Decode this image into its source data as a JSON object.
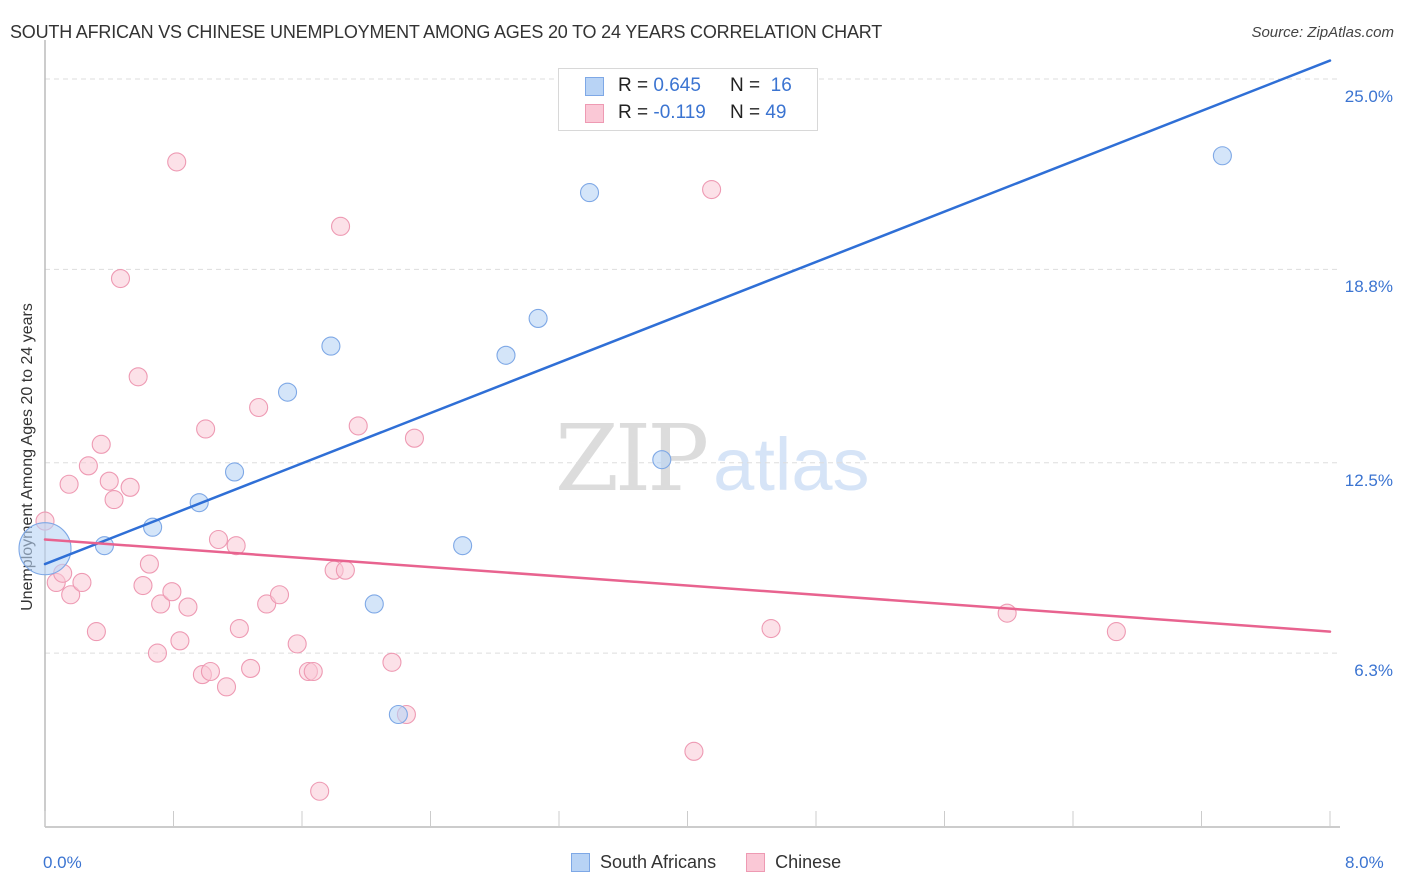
{
  "header": {
    "title": "SOUTH AFRICAN VS CHINESE UNEMPLOYMENT AMONG AGES 20 TO 24 YEARS CORRELATION CHART",
    "source": "Source: ZipAtlas.com"
  },
  "legend": {
    "rows": [
      {
        "r_label": "R =",
        "r_value": "0.645",
        "n_label": "N =",
        "n_value": "16",
        "color": "#b8d3f5",
        "border": "#7ea8e6"
      },
      {
        "r_label": "R =",
        "r_value": "-0.119",
        "n_label": "N =",
        "n_value": "49",
        "color": "#fac8d6",
        "border": "#ee9ab3"
      }
    ]
  },
  "bottom_legend": {
    "items": [
      {
        "label": "South Africans",
        "color": "#b8d3f5",
        "border": "#7ea8e6"
      },
      {
        "label": "Chinese",
        "color": "#fac8d6",
        "border": "#ee9ab3"
      }
    ]
  },
  "watermark": {
    "zip": "ZIP",
    "atlas": "atlas"
  },
  "colors": {
    "blue_line": "#2f6fd6",
    "pink_line": "#e8638f",
    "axis_label": "#3b74d1",
    "grid": "#dddddd"
  },
  "chart_data": {
    "type": "scatter",
    "title": "SOUTH AFRICAN VS CHINESE UNEMPLOYMENT AMONG AGES 20 TO 24 YEARS CORRELATION CHART",
    "xlabel": "",
    "ylabel": "Unemployment Among Ages 20 to 24 years",
    "xlim": [
      0.0,
      8.0
    ],
    "ylim": [
      0.6,
      25.6
    ],
    "x_tick_labels": [
      "0.0%",
      "8.0%"
    ],
    "y_tick_labels": [
      "25.0%",
      "18.8%",
      "12.5%",
      "6.3%"
    ],
    "y_ticks": [
      25.0,
      18.8,
      12.5,
      6.3
    ],
    "grid": true,
    "legend_position": "top-center",
    "series": [
      {
        "name": "South Africans",
        "color": "#b8d3f5",
        "R": 0.645,
        "N": 16,
        "trend": {
          "x0": 0.0,
          "y0": 9.2,
          "x1": 8.0,
          "y1": 25.6
        },
        "points": [
          {
            "x": 0.0,
            "y": 9.7,
            "size": "large"
          },
          {
            "x": 0.37,
            "y": 9.8
          },
          {
            "x": 0.67,
            "y": 10.4
          },
          {
            "x": 0.96,
            "y": 11.2
          },
          {
            "x": 1.18,
            "y": 12.2
          },
          {
            "x": 1.51,
            "y": 14.8
          },
          {
            "x": 1.78,
            "y": 16.3
          },
          {
            "x": 2.05,
            "y": 7.9
          },
          {
            "x": 2.2,
            "y": 4.3
          },
          {
            "x": 2.6,
            "y": 9.8
          },
          {
            "x": 2.87,
            "y": 16.0
          },
          {
            "x": 3.07,
            "y": 17.2
          },
          {
            "x": 3.39,
            "y": 21.3
          },
          {
            "x": 3.66,
            "y": 23.7
          },
          {
            "x": 3.84,
            "y": 12.6
          },
          {
            "x": 7.33,
            "y": 22.5
          }
        ]
      },
      {
        "name": "Chinese",
        "color": "#fac8d6",
        "R": -0.119,
        "N": 49,
        "trend": {
          "x0": 0.0,
          "y0": 10.0,
          "x1": 8.0,
          "y1": 7.0
        },
        "points": [
          {
            "x": 0.0,
            "y": 10.6
          },
          {
            "x": 0.07,
            "y": 8.6
          },
          {
            "x": 0.11,
            "y": 8.9
          },
          {
            "x": 0.15,
            "y": 11.8
          },
          {
            "x": 0.16,
            "y": 8.2
          },
          {
            "x": 0.23,
            "y": 8.6
          },
          {
            "x": 0.27,
            "y": 12.4
          },
          {
            "x": 0.32,
            "y": 7.0
          },
          {
            "x": 0.35,
            "y": 13.1
          },
          {
            "x": 0.4,
            "y": 11.9
          },
          {
            "x": 0.43,
            "y": 11.3
          },
          {
            "x": 0.47,
            "y": 18.5
          },
          {
            "x": 0.53,
            "y": 11.7
          },
          {
            "x": 0.58,
            "y": 15.3
          },
          {
            "x": 0.61,
            "y": 8.5
          },
          {
            "x": 0.65,
            "y": 9.2
          },
          {
            "x": 0.7,
            "y": 6.3
          },
          {
            "x": 0.72,
            "y": 7.9
          },
          {
            "x": 0.79,
            "y": 8.3
          },
          {
            "x": 0.82,
            "y": 22.3
          },
          {
            "x": 0.84,
            "y": 6.7
          },
          {
            "x": 0.89,
            "y": 7.8
          },
          {
            "x": 0.98,
            "y": 5.6
          },
          {
            "x": 1.0,
            "y": 13.6
          },
          {
            "x": 1.03,
            "y": 5.7
          },
          {
            "x": 1.08,
            "y": 10.0
          },
          {
            "x": 1.13,
            "y": 5.2
          },
          {
            "x": 1.19,
            "y": 9.8
          },
          {
            "x": 1.21,
            "y": 7.1
          },
          {
            "x": 1.28,
            "y": 5.8
          },
          {
            "x": 1.33,
            "y": 14.3
          },
          {
            "x": 1.38,
            "y": 7.9
          },
          {
            "x": 1.46,
            "y": 8.2
          },
          {
            "x": 1.57,
            "y": 6.6
          },
          {
            "x": 1.64,
            "y": 5.7
          },
          {
            "x": 1.67,
            "y": 5.7
          },
          {
            "x": 1.71,
            "y": 1.8
          },
          {
            "x": 1.8,
            "y": 9.0
          },
          {
            "x": 1.84,
            "y": 20.2
          },
          {
            "x": 1.87,
            "y": 9.0
          },
          {
            "x": 1.95,
            "y": 13.7
          },
          {
            "x": 2.16,
            "y": 6.0
          },
          {
            "x": 2.25,
            "y": 4.3
          },
          {
            "x": 2.3,
            "y": 13.3
          },
          {
            "x": 4.04,
            "y": 3.1
          },
          {
            "x": 4.15,
            "y": 21.4
          },
          {
            "x": 4.52,
            "y": 7.1
          },
          {
            "x": 5.99,
            "y": 7.6
          },
          {
            "x": 6.67,
            "y": 7.0
          }
        ]
      }
    ]
  }
}
